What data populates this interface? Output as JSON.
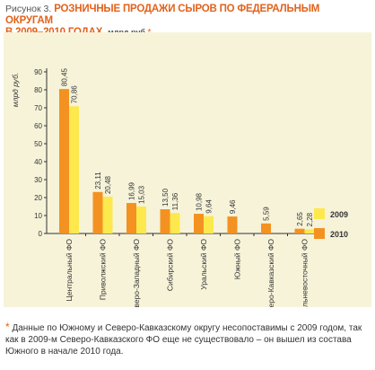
{
  "header": {
    "figure_label": "Рисунок 3.",
    "title_line1": "РОЗНИЧНЫЕ ПРОДАЖИ СЫРОВ ПО ФЕДЕРАЛЬНЫМ ОКРУГАМ",
    "title_line2": "В 2009–2010 ГОДАХ,",
    "unit": "млрд руб.",
    "asterisk": "*"
  },
  "footnote": {
    "asterisk": "*",
    "text": "Данные по Южному и Северо-Кавказскому округу несопоставимы с 2009 годом, так как в 2009-м Северо-Кавказского ФО еще не существовало – он вышел из состава Южного в начале 2010 года."
  },
  "colors": {
    "series_2010": "#f39221",
    "series_2009": "#fde84d",
    "title_accent": "#e2621b",
    "panel_background": "#f6f3d9"
  },
  "chart_data": {
    "type": "bar",
    "ylabel": "млрд руб.",
    "ylim": [
      0,
      90
    ],
    "yticks": [
      0,
      10,
      20,
      30,
      40,
      50,
      60,
      70,
      80,
      90
    ],
    "categories": [
      "Центральный ФО",
      "Приволжский ФО",
      "Северо-Западный ФО",
      "Сибирский ФО",
      "Уральский ФО",
      "Южный ФО",
      "Северо-Кавказский ФО",
      "Дальневосточный ФО"
    ],
    "series": [
      {
        "name": "2010",
        "values": [
          80.45,
          23.11,
          16.99,
          13.5,
          10.98,
          9.46,
          5.59,
          2.65
        ],
        "labels": [
          "80,45",
          "23,11",
          "16,99",
          "13,50",
          "10,98",
          "9,46",
          "5,59",
          "2,65"
        ]
      },
      {
        "name": "2009",
        "values": [
          70.86,
          20.48,
          15.03,
          11.36,
          9.64,
          null,
          null,
          2.28
        ],
        "labels": [
          "70,86",
          "20,48",
          "15,03",
          "11,36",
          "9,64",
          "",
          "",
          "2,28"
        ]
      }
    ],
    "legend": {
      "placement": "right",
      "order": [
        "2009",
        "2010"
      ]
    },
    "grid": false
  }
}
